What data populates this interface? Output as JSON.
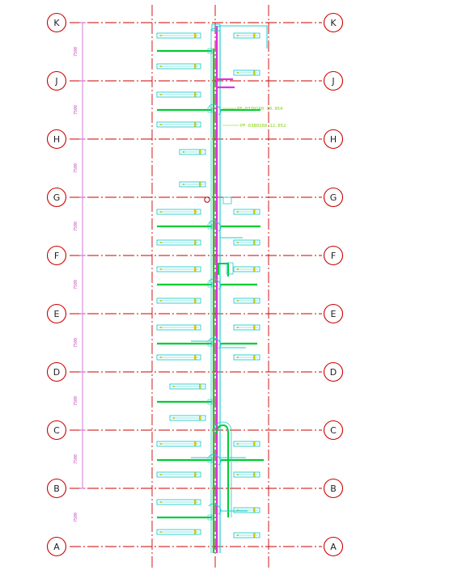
{
  "axis_labels": [
    "K",
    "J",
    "H",
    "G",
    "F",
    "E",
    "D",
    "C",
    "B",
    "A"
  ],
  "dimension_labels": [
    "7500",
    "7500",
    "7500",
    "7500",
    "7500",
    "7500",
    "7500",
    "7500",
    "7500"
  ],
  "annotations": [
    "PF-8370160 10.954",
    "PF-6380160 12.652"
  ],
  "colors": {
    "grid_line": "#cc0000",
    "bubble": "#cc0000",
    "pipe_main": "#00cc33",
    "duct": "#22cccc",
    "magenta": "#dd33dd",
    "dimension": "#cc55cc",
    "note": "#88cc00"
  }
}
